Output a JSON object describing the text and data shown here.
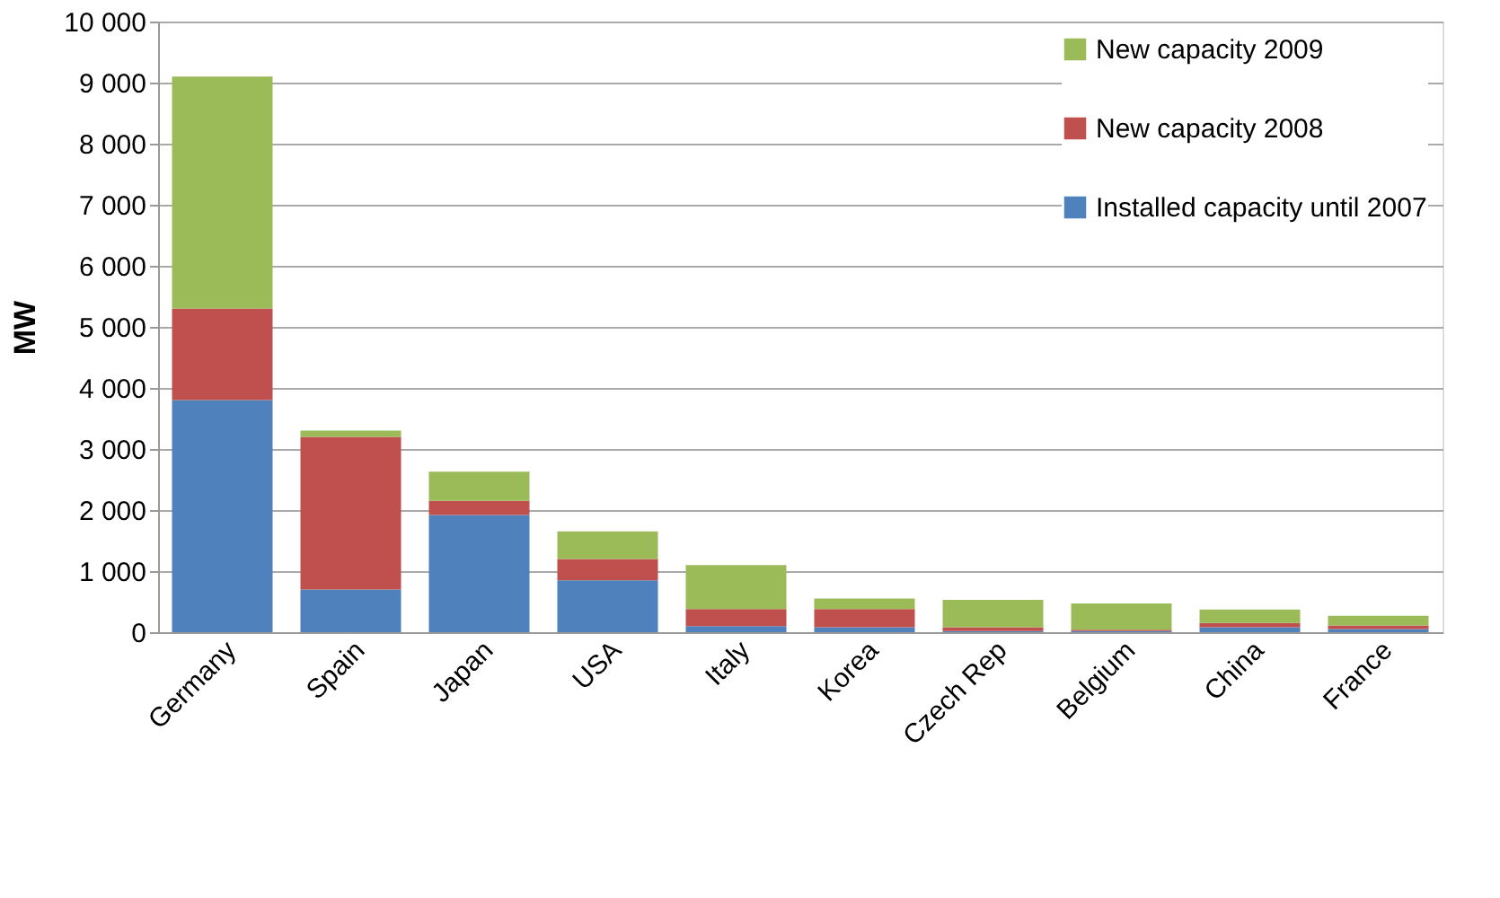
{
  "chart_data": {
    "type": "bar",
    "stacked": true,
    "ylabel": "MW",
    "categories": [
      "Germany",
      "Spain",
      "Japan",
      "USA",
      "Italy",
      "Korea",
      "Czech Rep",
      "Belgium",
      "China",
      "France"
    ],
    "series": [
      {
        "name": "Installed capacity until 2007",
        "color": "#4f81bd",
        "values": [
          3800,
          700,
          1920,
          850,
          100,
          80,
          20,
          20,
          80,
          50
        ]
      },
      {
        "name": "New capacity 2008",
        "color": "#c0504d",
        "values": [
          1500,
          2500,
          230,
          350,
          280,
          300,
          60,
          20,
          70,
          60
        ]
      },
      {
        "name": "New capacity 2009",
        "color": "#9bbb59",
        "values": [
          3800,
          100,
          480,
          450,
          720,
          170,
          450,
          430,
          220,
          160
        ]
      }
    ],
    "ylim": [
      0,
      10000
    ],
    "yticks": [
      0,
      {
        "value": 1000,
        "label": "1 000"
      },
      {
        "value": 2000,
        "label": "2 000"
      },
      {
        "value": 3000,
        "label": "3 000"
      },
      {
        "value": 4000,
        "label": "4 000"
      },
      {
        "value": 5000,
        "label": "5 000"
      },
      {
        "value": 6000,
        "label": "6 000"
      },
      {
        "value": 7000,
        "label": "7 000"
      },
      {
        "value": 8000,
        "label": "8 000"
      },
      {
        "value": 9000,
        "label": "9 000"
      },
      {
        "value": 10000,
        "label": "10 000"
      }
    ],
    "grid": "y",
    "legend": "top right"
  }
}
